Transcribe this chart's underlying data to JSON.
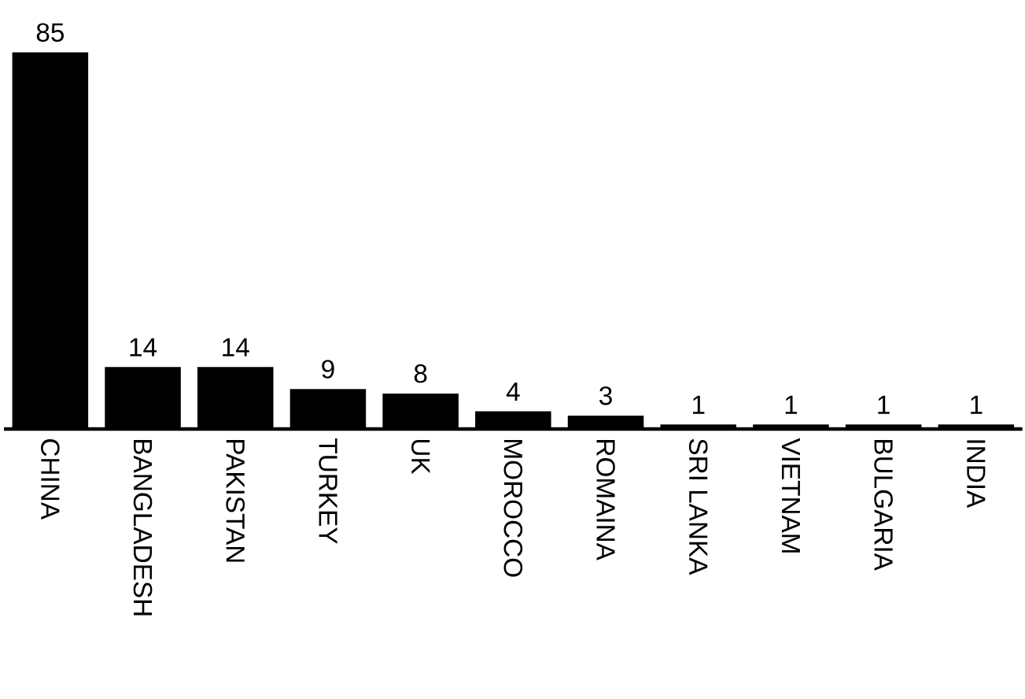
{
  "chart_data": {
    "type": "bar",
    "categories": [
      "CHINA",
      "BANGLADESH",
      "PAKISTAN",
      "TURKEY",
      "UK",
      "MOROCCO",
      "ROMAINA",
      "SRI LANKA",
      "VIETNAM",
      "BULGARIA",
      "INDIA"
    ],
    "values": [
      85,
      14,
      14,
      9,
      8,
      4,
      3,
      1,
      1,
      1,
      1
    ],
    "color": "#000000",
    "data_labels": true
  }
}
